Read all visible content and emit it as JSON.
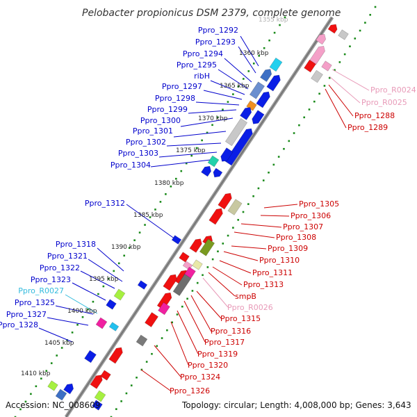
{
  "title": "Pelobacter propionicus DSM 2379, complete genome",
  "accession_label": "Accession: NC_008609",
  "topology_label": "Topology: circular; Length: 4,008,000 bp; Genes: 3,643",
  "colors": {
    "backbone": "#9a9a9a",
    "tick_dots": "#1a8a1a",
    "blue_label": "#0000cc",
    "red_label": "#cc0000",
    "pink_label": "#e89ab8",
    "cyan_label": "#33bbdd",
    "blue_gene": "#0a1ee6",
    "red_gene": "#f01010"
  },
  "scale_labels": [
    "1355 kbp",
    "1360 kbp",
    "1365 kbp",
    "1370 kbp",
    "1375 kbp",
    "1380 kbp",
    "1385 kbp",
    "1390 kbp",
    "1395 kbp",
    "1400 kbp",
    "1405 kbp",
    "1410 kbp"
  ],
  "left_labels": [
    "Ppro_1292",
    "Ppro_1293",
    "Ppro_1294",
    "Ppro_1295",
    "ribH",
    "Ppro_1297",
    "Ppro_1298",
    "Ppro_1299",
    "Ppro_1300",
    "Ppro_1301",
    "Ppro_1302",
    "Ppro_1303",
    "Ppro_1304",
    "Ppro_1312",
    "Ppro_1318",
    "Ppro_1321",
    "Ppro_1322",
    "Ppro_1323",
    "Ppro_R0027",
    "Ppro_1325",
    "Ppro_1327",
    "Ppro_1328"
  ],
  "right_labels": [
    "Ppro_R0024",
    "Ppro_R0025",
    "Ppro_1288",
    "Ppro_1289",
    "Ppro_1305",
    "Ppro_1306",
    "Ppro_1307",
    "Ppro_1308",
    "Ppro_1309",
    "Ppro_1310",
    "Ppro_1311",
    "Ppro_1313",
    "smpB",
    "Ppro_R0026",
    "Ppro_1315",
    "Ppro_1316",
    "Ppro_1317",
    "Ppro_1319",
    "Ppro_1320",
    "Ppro_1324",
    "Ppro_1326"
  ]
}
